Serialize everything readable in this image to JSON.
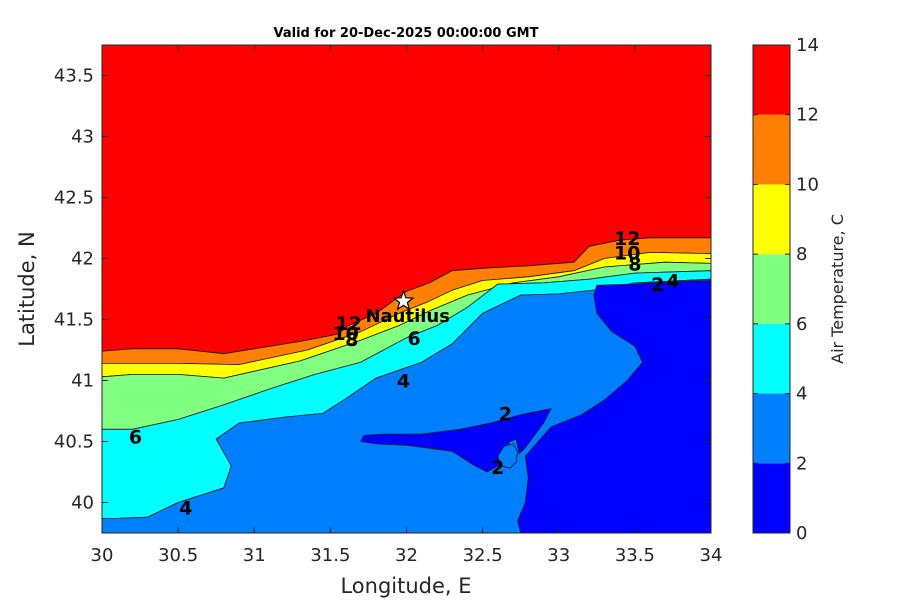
{
  "chart_data": {
    "type": "contour",
    "title": "Valid for 20-Dec-2025 00:00:00 GMT",
    "xlabel": "Longitude, E",
    "ylabel": "Latitude, N",
    "colorbar_label": "Air Temperature, C",
    "xlim": [
      30,
      34
    ],
    "ylim": [
      39.75,
      43.75
    ],
    "x_ticks": [
      "30",
      "30.5",
      "31",
      "31.5",
      "32",
      "32.5",
      "33",
      "33.5",
      "34"
    ],
    "y_ticks": [
      "40",
      "40.5",
      "41",
      "41.5",
      "42",
      "42.5",
      "43",
      "43.5"
    ],
    "colorbar_range": [
      0,
      14
    ],
    "colorbar_ticks": [
      "0",
      "2",
      "4",
      "6",
      "8",
      "10",
      "12",
      "14"
    ],
    "levels": [
      {
        "min": 0,
        "max": 2,
        "color": "#0000ff"
      },
      {
        "min": 2,
        "max": 4,
        "color": "#0080ff"
      },
      {
        "min": 4,
        "max": 6,
        "color": "#00ffff"
      },
      {
        "min": 6,
        "max": 8,
        "color": "#80ff80"
      },
      {
        "min": 8,
        "max": 10,
        "color": "#ffff00"
      },
      {
        "min": 10,
        "max": 12,
        "color": "#ff8000"
      },
      {
        "min": 12,
        "max": 14,
        "color": "#ff0000"
      },
      {
        "min": 14,
        "max": 16,
        "color": "#800000"
      }
    ],
    "contour_labels": [
      {
        "text": "12",
        "lon": 31.62,
        "lat": 41.47
      },
      {
        "text": "10",
        "lon": 31.6,
        "lat": 41.39
      },
      {
        "text": "8",
        "lon": 31.64,
        "lat": 41.34
      },
      {
        "text": "6",
        "lon": 32.05,
        "lat": 41.35
      },
      {
        "text": "4",
        "lon": 31.98,
        "lat": 41.0
      },
      {
        "text": "2",
        "lon": 32.65,
        "lat": 40.73
      },
      {
        "text": "2",
        "lon": 32.6,
        "lat": 40.29
      },
      {
        "text": "6",
        "lon": 30.22,
        "lat": 40.54
      },
      {
        "text": "4",
        "lon": 30.55,
        "lat": 39.96
      },
      {
        "text": "12",
        "lon": 33.45,
        "lat": 42.17
      },
      {
        "text": "10",
        "lon": 33.45,
        "lat": 42.05
      },
      {
        "text": "8",
        "lon": 33.5,
        "lat": 41.96
      },
      {
        "text": "2",
        "lon": 33.65,
        "lat": 41.79
      },
      {
        "text": "4",
        "lon": 33.75,
        "lat": 41.82
      }
    ],
    "marker": {
      "label": "Nautilus",
      "lon": 31.98,
      "lat": 41.65,
      "symbol": "star"
    },
    "bands": [
      {
        "level": "12-14",
        "color": "#ff0000",
        "polygon": [
          [
            30,
            43.75
          ],
          [
            34,
            43.75
          ],
          [
            34,
            42.17
          ],
          [
            33.6,
            42.17
          ],
          [
            33.4,
            42.15
          ],
          [
            33.2,
            42.1
          ],
          [
            33.1,
            41.97
          ],
          [
            32.8,
            41.94
          ],
          [
            32.5,
            41.92
          ],
          [
            32.3,
            41.9
          ],
          [
            32.15,
            41.8
          ],
          [
            32.0,
            41.73
          ],
          [
            31.8,
            41.55
          ],
          [
            31.62,
            41.45
          ],
          [
            31.55,
            41.38
          ],
          [
            31.3,
            41.32
          ],
          [
            30.8,
            41.22
          ],
          [
            30.5,
            41.26
          ],
          [
            30.2,
            41.26
          ],
          [
            30,
            41.24
          ]
        ]
      },
      {
        "level": "10-12",
        "color": "#ff8000",
        "polygon": [
          [
            30,
            41.24
          ],
          [
            30.2,
            41.26
          ],
          [
            30.5,
            41.26
          ],
          [
            30.8,
            41.22
          ],
          [
            31.3,
            41.32
          ],
          [
            31.55,
            41.38
          ],
          [
            31.62,
            41.45
          ],
          [
            31.8,
            41.55
          ],
          [
            32.0,
            41.73
          ],
          [
            32.15,
            41.8
          ],
          [
            32.3,
            41.9
          ],
          [
            32.5,
            41.92
          ],
          [
            32.8,
            41.94
          ],
          [
            33.1,
            41.97
          ],
          [
            33.2,
            42.1
          ],
          [
            33.4,
            42.15
          ],
          [
            33.6,
            42.17
          ],
          [
            34,
            42.17
          ],
          [
            34,
            42.04
          ],
          [
            33.6,
            42.05
          ],
          [
            33.3,
            42.0
          ],
          [
            33.1,
            41.9
          ],
          [
            32.8,
            41.85
          ],
          [
            32.5,
            41.82
          ],
          [
            32.3,
            41.74
          ],
          [
            32.15,
            41.65
          ],
          [
            31.95,
            41.55
          ],
          [
            31.7,
            41.4
          ],
          [
            31.35,
            41.25
          ],
          [
            30.9,
            41.13
          ],
          [
            30.5,
            41.14
          ],
          [
            30.2,
            41.14
          ],
          [
            30,
            41.14
          ]
        ]
      },
      {
        "level": "8-10",
        "color": "#ffff00",
        "polygon": [
          [
            30,
            41.14
          ],
          [
            30.2,
            41.14
          ],
          [
            30.5,
            41.14
          ],
          [
            30.9,
            41.13
          ],
          [
            31.35,
            41.25
          ],
          [
            31.7,
            41.4
          ],
          [
            31.95,
            41.55
          ],
          [
            32.15,
            41.65
          ],
          [
            32.3,
            41.74
          ],
          [
            32.5,
            41.82
          ],
          [
            32.8,
            41.85
          ],
          [
            33.1,
            41.9
          ],
          [
            33.3,
            42.0
          ],
          [
            33.6,
            42.05
          ],
          [
            34,
            42.04
          ],
          [
            34,
            41.96
          ],
          [
            33.7,
            41.97
          ],
          [
            33.3,
            41.93
          ],
          [
            33.0,
            41.85
          ],
          [
            32.7,
            41.8
          ],
          [
            32.4,
            41.7
          ],
          [
            32.15,
            41.57
          ],
          [
            31.95,
            41.45
          ],
          [
            31.7,
            41.33
          ],
          [
            31.3,
            41.16
          ],
          [
            30.8,
            41.02
          ],
          [
            30.5,
            41.05
          ],
          [
            30.2,
            41.05
          ],
          [
            30,
            41.03
          ]
        ]
      },
      {
        "level": "6-8",
        "color": "#80ff80",
        "polygon": [
          [
            30,
            41.03
          ],
          [
            30.2,
            41.05
          ],
          [
            30.5,
            41.05
          ],
          [
            30.8,
            41.02
          ],
          [
            31.3,
            41.16
          ],
          [
            31.7,
            41.33
          ],
          [
            31.95,
            41.45
          ],
          [
            32.15,
            41.57
          ],
          [
            32.4,
            41.7
          ],
          [
            32.7,
            41.8
          ],
          [
            33.0,
            41.85
          ],
          [
            33.3,
            41.93
          ],
          [
            33.7,
            41.97
          ],
          [
            34,
            41.96
          ],
          [
            34,
            41.9
          ],
          [
            33.5,
            41.88
          ],
          [
            33.2,
            41.83
          ],
          [
            32.9,
            41.8
          ],
          [
            32.6,
            41.79
          ],
          [
            32.4,
            41.6
          ],
          [
            32.2,
            41.45
          ],
          [
            32.0,
            41.35
          ],
          [
            31.7,
            41.15
          ],
          [
            31.4,
            41.05
          ],
          [
            31.1,
            40.93
          ],
          [
            30.8,
            40.8
          ],
          [
            30.5,
            40.68
          ],
          [
            30.2,
            40.6
          ],
          [
            30,
            40.6
          ]
        ]
      },
      {
        "level": "4-6",
        "color": "#00ffff",
        "polygon": [
          [
            30,
            40.6
          ],
          [
            30.2,
            40.6
          ],
          [
            30.5,
            40.68
          ],
          [
            30.8,
            40.8
          ],
          [
            31.1,
            40.93
          ],
          [
            31.4,
            41.05
          ],
          [
            31.7,
            41.15
          ],
          [
            32.0,
            41.35
          ],
          [
            32.2,
            41.45
          ],
          [
            32.4,
            41.6
          ],
          [
            32.6,
            41.79
          ],
          [
            32.9,
            41.8
          ],
          [
            33.2,
            41.83
          ],
          [
            33.5,
            41.88
          ],
          [
            34,
            41.9
          ],
          [
            34,
            41.83
          ],
          [
            33.5,
            41.8
          ],
          [
            33.3,
            41.75
          ],
          [
            33.0,
            41.71
          ],
          [
            32.75,
            41.7
          ],
          [
            32.5,
            41.55
          ],
          [
            32.3,
            41.3
          ],
          [
            32.1,
            41.15
          ],
          [
            31.8,
            41.02
          ],
          [
            31.6,
            40.85
          ],
          [
            31.45,
            40.73
          ],
          [
            31.2,
            40.7
          ],
          [
            30.9,
            40.65
          ],
          [
            30.75,
            40.52
          ],
          [
            30.85,
            40.3
          ],
          [
            30.8,
            40.12
          ],
          [
            30.5,
            40.0
          ],
          [
            30.3,
            39.88
          ],
          [
            30.1,
            39.87
          ],
          [
            30,
            39.87
          ]
        ]
      },
      {
        "level": "2-4",
        "color": "#0080ff",
        "polygon": [
          [
            30,
            39.87
          ],
          [
            30.1,
            39.87
          ],
          [
            30.3,
            39.88
          ],
          [
            30.5,
            40.0
          ],
          [
            30.8,
            40.12
          ],
          [
            30.85,
            40.3
          ],
          [
            30.75,
            40.52
          ],
          [
            30.9,
            40.65
          ],
          [
            31.2,
            40.7
          ],
          [
            31.45,
            40.73
          ],
          [
            31.6,
            40.85
          ],
          [
            31.8,
            41.02
          ],
          [
            32.1,
            41.15
          ],
          [
            32.3,
            41.3
          ],
          [
            32.5,
            41.55
          ],
          [
            32.75,
            41.7
          ],
          [
            33.0,
            41.71
          ],
          [
            33.3,
            41.75
          ],
          [
            33.5,
            41.8
          ],
          [
            34,
            41.83
          ],
          [
            34,
            39.75
          ],
          [
            30,
            39.75
          ]
        ]
      },
      {
        "level": "0-2 east",
        "color": "#0000ff",
        "polygon": [
          [
            33.25,
            41.78
          ],
          [
            33.5,
            41.79
          ],
          [
            33.75,
            41.81
          ],
          [
            34,
            41.82
          ],
          [
            34,
            39.75
          ],
          [
            32.75,
            39.75
          ],
          [
            32.73,
            39.85
          ],
          [
            32.78,
            40.0
          ],
          [
            32.8,
            40.2
          ],
          [
            32.78,
            40.38
          ],
          [
            32.95,
            40.62
          ],
          [
            33.15,
            40.72
          ],
          [
            33.3,
            40.84
          ],
          [
            33.45,
            41.0
          ],
          [
            33.55,
            41.15
          ],
          [
            33.5,
            41.28
          ],
          [
            33.35,
            41.4
          ],
          [
            33.25,
            41.55
          ],
          [
            33.23,
            41.7
          ]
        ]
      },
      {
        "level": "0-2 west",
        "color": "#0000ff",
        "polygon": [
          [
            31.72,
            40.55
          ],
          [
            31.85,
            40.56
          ],
          [
            32.1,
            40.56
          ],
          [
            32.35,
            40.6
          ],
          [
            32.55,
            40.65
          ],
          [
            32.75,
            40.72
          ],
          [
            32.95,
            40.77
          ],
          [
            32.9,
            40.65
          ],
          [
            32.78,
            40.45
          ],
          [
            32.74,
            40.4
          ],
          [
            32.72,
            40.52
          ],
          [
            32.68,
            40.5
          ],
          [
            32.6,
            40.3
          ],
          [
            32.53,
            40.25
          ],
          [
            32.45,
            40.3
          ],
          [
            32.3,
            40.42
          ],
          [
            32.0,
            40.47
          ],
          [
            31.8,
            40.48
          ],
          [
            31.7,
            40.5
          ]
        ]
      },
      {
        "level": "islet 2-4",
        "color": "#0080ff",
        "polygon": [
          [
            32.7,
            40.48
          ],
          [
            32.73,
            40.42
          ],
          [
            32.72,
            40.33
          ],
          [
            32.68,
            40.28
          ],
          [
            32.62,
            40.3
          ],
          [
            32.6,
            40.38
          ],
          [
            32.64,
            40.46
          ]
        ]
      }
    ]
  }
}
